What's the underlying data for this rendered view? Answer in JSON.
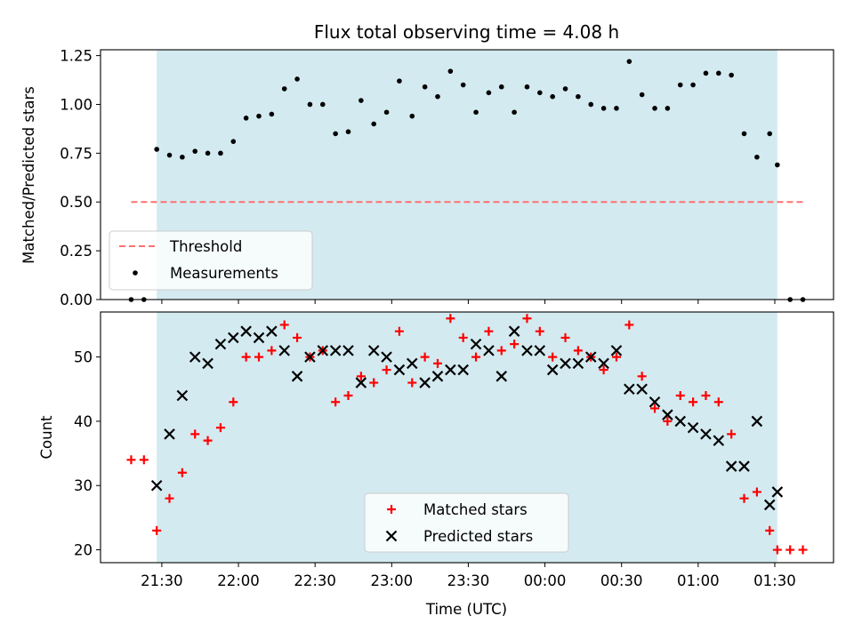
{
  "chart_data": [
    {
      "type": "scatter",
      "title": "Flux total observing time = 4.08 h",
      "ylabel": "Matched/Predicted stars",
      "ylim": [
        0,
        1.28
      ],
      "yticks": [
        "0.00",
        "0.25",
        "0.50",
        "0.75",
        "1.00",
        "1.25"
      ],
      "ytick_values": [
        0,
        0.25,
        0.5,
        0.75,
        1.0,
        1.25
      ],
      "xlim": [
        "21:06",
        "01:53"
      ],
      "shaded_interval": [
        "21:28",
        "01:31"
      ],
      "shade_color": "#d3eaf0",
      "threshold": {
        "name": "Threshold",
        "value": 0.5,
        "x_range": [
          "21:18",
          "01:41"
        ],
        "color": "#ff7070"
      },
      "legend": {
        "position": "lower-left",
        "entries": [
          "Threshold",
          "Measurements"
        ]
      },
      "series": [
        {
          "name": "Measurements",
          "color": "#000000",
          "marker": "dot",
          "x": [
            "21:18",
            "21:23",
            "21:28",
            "21:33",
            "21:38",
            "21:43",
            "21:48",
            "21:53",
            "21:58",
            "22:03",
            "22:08",
            "22:13",
            "22:18",
            "22:23",
            "22:28",
            "22:33",
            "22:38",
            "22:43",
            "22:48",
            "22:53",
            "22:58",
            "23:03",
            "23:08",
            "23:13",
            "23:18",
            "23:23",
            "23:28",
            "23:33",
            "23:38",
            "23:43",
            "23:48",
            "23:53",
            "23:58",
            "00:03",
            "00:08",
            "00:13",
            "00:18",
            "00:23",
            "00:28",
            "00:33",
            "00:38",
            "00:43",
            "00:48",
            "00:53",
            "00:58",
            "01:03",
            "01:08",
            "01:13",
            "01:18",
            "01:23",
            "01:28",
            "01:31",
            "01:36",
            "01:41"
          ],
          "y": [
            0.0,
            0.0,
            0.77,
            0.74,
            0.73,
            0.76,
            0.75,
            0.75,
            0.81,
            0.93,
            0.94,
            0.95,
            1.08,
            1.13,
            1.0,
            1.0,
            0.85,
            0.86,
            1.02,
            0.9,
            0.96,
            1.12,
            0.94,
            1.09,
            1.04,
            1.17,
            1.1,
            0.96,
            1.06,
            1.09,
            0.96,
            1.09,
            1.06,
            1.04,
            1.08,
            1.04,
            1.0,
            0.98,
            0.98,
            1.22,
            1.05,
            0.98,
            0.98,
            1.1,
            1.1,
            1.16,
            1.16,
            1.15,
            0.85,
            0.73,
            0.85,
            0.69,
            0.0,
            0.0
          ]
        }
      ]
    },
    {
      "type": "scatter",
      "xlabel": "Time (UTC)",
      "ylabel": "Count",
      "ylim": [
        18,
        57
      ],
      "yticks": [
        "20",
        "30",
        "40",
        "50"
      ],
      "ytick_values": [
        20,
        30,
        40,
        50
      ],
      "xlim": [
        "21:06",
        "01:53"
      ],
      "xticks": [
        "21:30",
        "22:00",
        "22:30",
        "23:00",
        "23:30",
        "00:00",
        "00:30",
        "01:00",
        "01:30"
      ],
      "shaded_interval": [
        "21:28",
        "01:31"
      ],
      "legend": {
        "position": "lower-center",
        "entries": [
          "Matched stars",
          "Predicted stars"
        ]
      },
      "series": [
        {
          "name": "Matched stars",
          "color": "#ff0000",
          "marker": "plus",
          "x": [
            "21:18",
            "21:23",
            "21:28",
            "21:33",
            "21:38",
            "21:43",
            "21:48",
            "21:53",
            "21:58",
            "22:03",
            "22:08",
            "22:13",
            "22:18",
            "22:23",
            "22:28",
            "22:33",
            "22:38",
            "22:43",
            "22:48",
            "22:53",
            "22:58",
            "23:03",
            "23:08",
            "23:13",
            "23:18",
            "23:23",
            "23:28",
            "23:33",
            "23:38",
            "23:43",
            "23:48",
            "23:53",
            "23:58",
            "00:03",
            "00:08",
            "00:13",
            "00:18",
            "00:23",
            "00:28",
            "00:33",
            "00:38",
            "00:43",
            "00:48",
            "00:53",
            "00:58",
            "01:03",
            "01:08",
            "01:13",
            "01:18",
            "01:23",
            "01:28",
            "01:31",
            "01:36",
            "01:41"
          ],
          "y": [
            34,
            34,
            23,
            28,
            32,
            38,
            37,
            39,
            43,
            50,
            50,
            51,
            55,
            53,
            50,
            51,
            43,
            44,
            47,
            46,
            48,
            54,
            46,
            50,
            49,
            56,
            53,
            50,
            54,
            51,
            52,
            56,
            54,
            50,
            53,
            51,
            50,
            48,
            50,
            55,
            47,
            42,
            40,
            44,
            43,
            44,
            43,
            38,
            28,
            29,
            23,
            20,
            20,
            20
          ]
        },
        {
          "name": "Predicted stars",
          "color": "#000000",
          "marker": "x",
          "x": [
            "21:28",
            "21:33",
            "21:38",
            "21:43",
            "21:48",
            "21:53",
            "21:58",
            "22:03",
            "22:08",
            "22:13",
            "22:18",
            "22:23",
            "22:28",
            "22:33",
            "22:38",
            "22:43",
            "22:48",
            "22:53",
            "22:58",
            "23:03",
            "23:08",
            "23:13",
            "23:18",
            "23:23",
            "23:28",
            "23:33",
            "23:38",
            "23:43",
            "23:48",
            "23:53",
            "23:58",
            "00:03",
            "00:08",
            "00:13",
            "00:18",
            "00:23",
            "00:28",
            "00:33",
            "00:38",
            "00:43",
            "00:48",
            "00:53",
            "00:58",
            "01:03",
            "01:08",
            "01:13",
            "01:18",
            "01:23",
            "01:28",
            "01:31"
          ],
          "y": [
            30,
            38,
            44,
            50,
            49,
            52,
            53,
            54,
            53,
            54,
            51,
            47,
            50,
            51,
            51,
            51,
            46,
            51,
            50,
            48,
            49,
            46,
            47,
            48,
            48,
            52,
            51,
            47,
            54,
            51,
            51,
            48,
            49,
            49,
            50,
            49,
            51,
            45,
            45,
            43,
            41,
            40,
            39,
            38,
            37,
            33,
            33,
            40,
            27,
            29
          ]
        }
      ]
    }
  ]
}
